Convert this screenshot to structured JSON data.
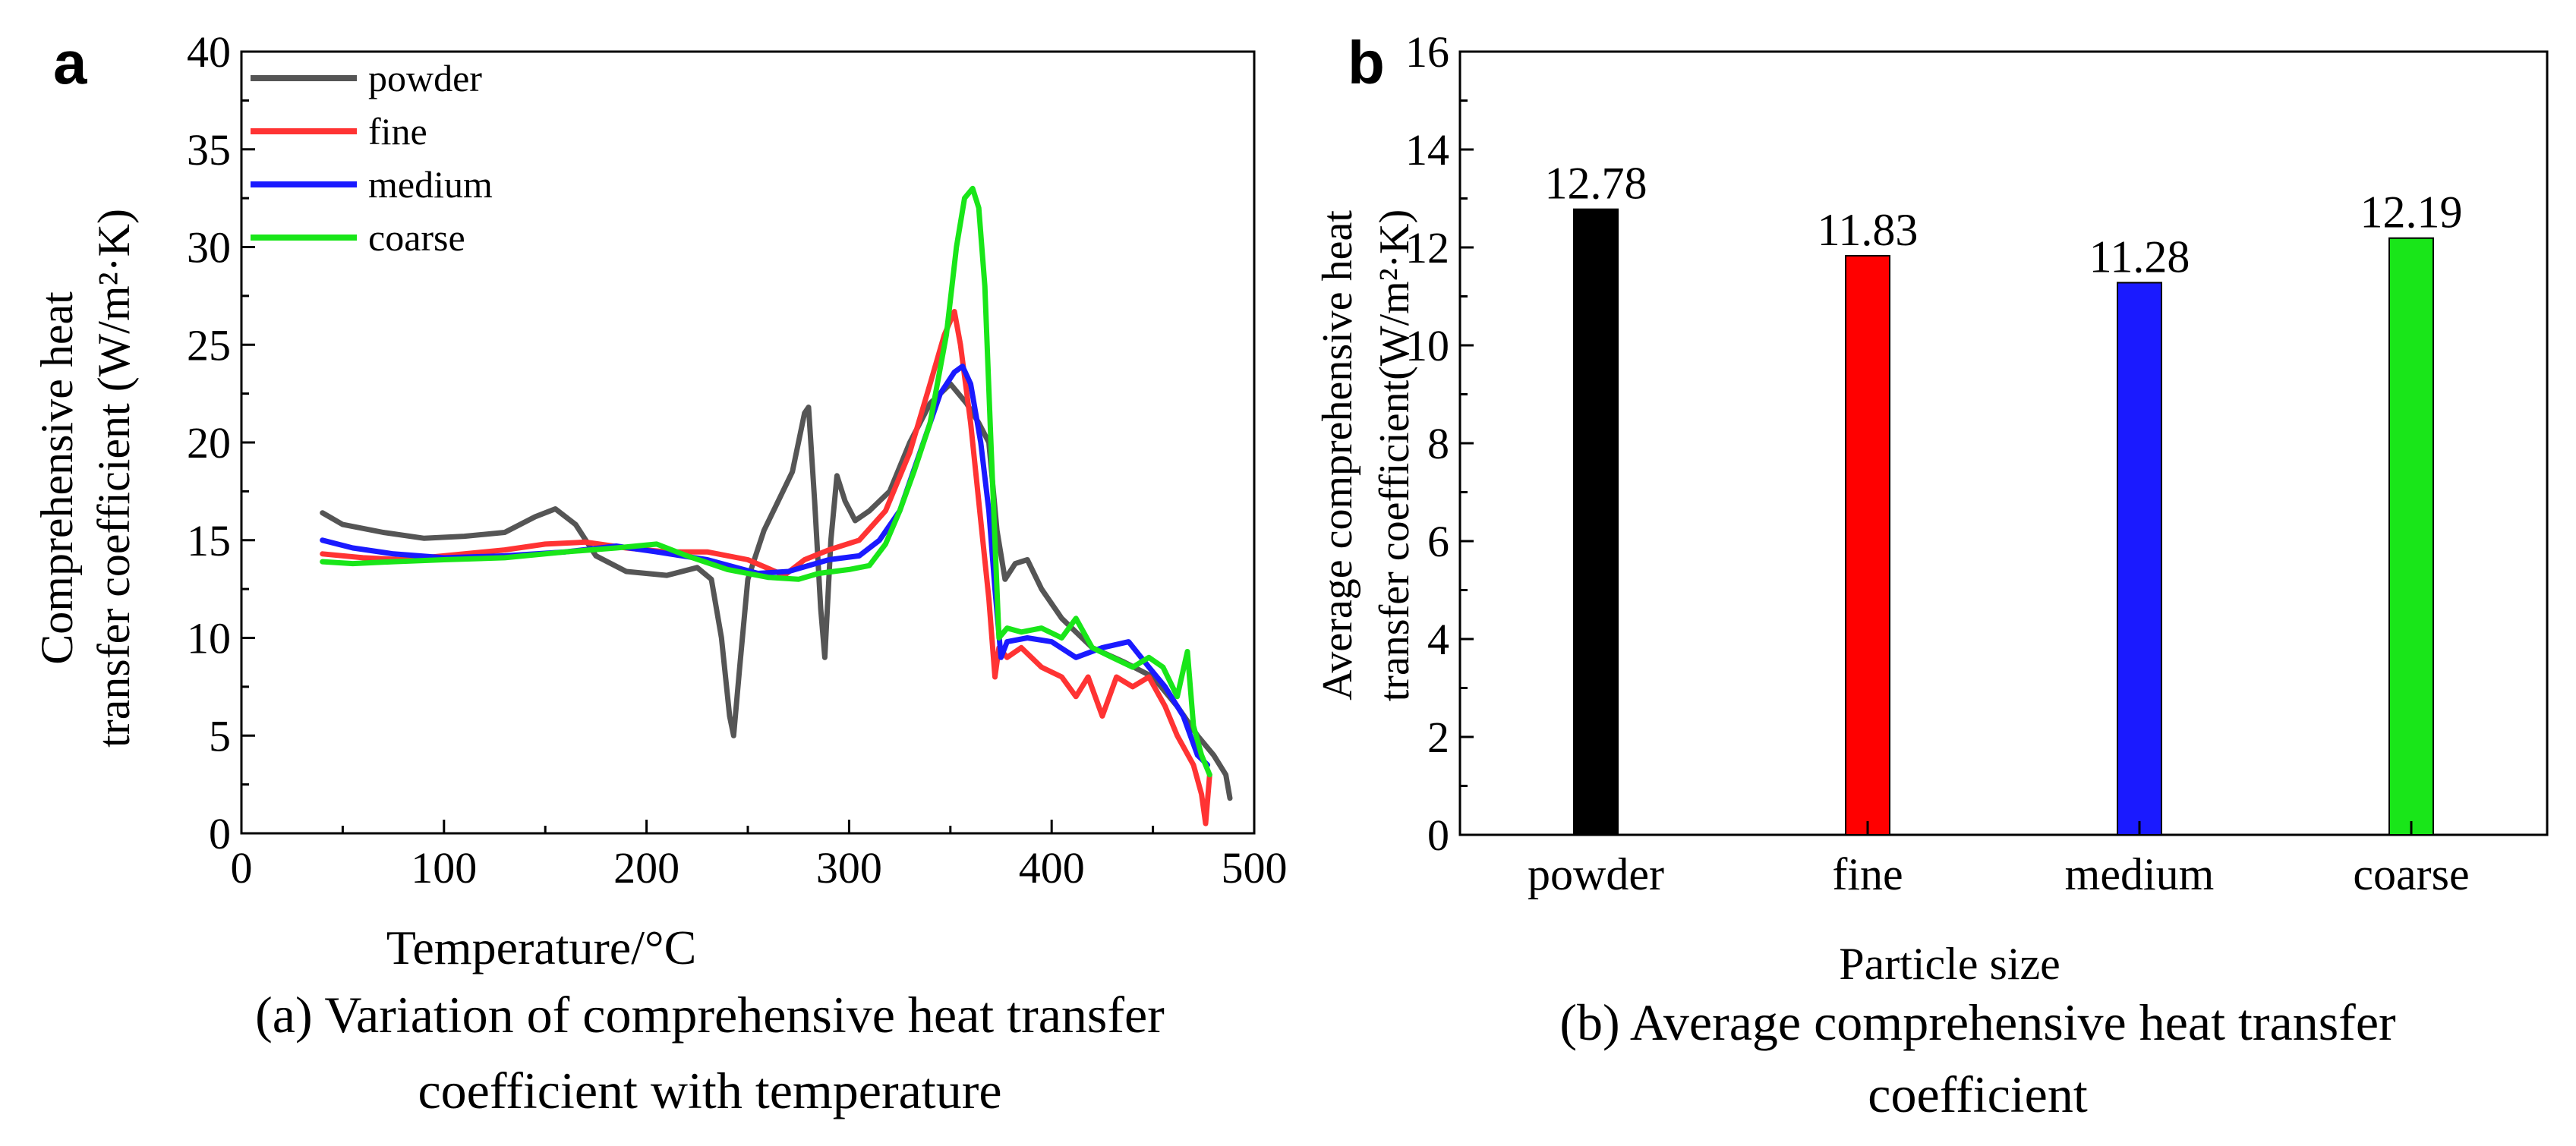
{
  "panels": {
    "a": {
      "label": "a",
      "caption_line1": "(a) Variation of comprehensive heat transfer",
      "caption_line2": "coefficient with temperature"
    },
    "b": {
      "label": "b",
      "caption_line1": "(b) Average comprehensive heat transfer",
      "caption_line2": "coefficient"
    }
  },
  "colors": {
    "powder": "#555555",
    "fine": "#ff3333",
    "medium": "#1a1aff",
    "coarse": "#19e619",
    "black": "#000000"
  },
  "chart_data": [
    {
      "type": "line",
      "xlabel": "Temperature/°C",
      "ylabel_line1": "Comprehensive heat",
      "ylabel_line2": "transfer coefficient (W/m²·K)",
      "xlim": [
        0,
        500
      ],
      "ylim": [
        0,
        40
      ],
      "xticks": [
        "0",
        "100",
        "200",
        "300",
        "400",
        "500"
      ],
      "yticks": [
        "0",
        "5",
        "10",
        "15",
        "20",
        "25",
        "30",
        "35",
        "40"
      ],
      "legend_position": "top-left",
      "series": [
        {
          "name": "powder",
          "color": "#555555",
          "points": [
            [
              40,
              16.4
            ],
            [
              50,
              15.8
            ],
            [
              70,
              15.4
            ],
            [
              90,
              15.1
            ],
            [
              110,
              15.2
            ],
            [
              130,
              15.4
            ],
            [
              145,
              16.2
            ],
            [
              155,
              16.6
            ],
            [
              165,
              15.8
            ],
            [
              175,
              14.2
            ],
            [
              190,
              13.4
            ],
            [
              210,
              13.2
            ],
            [
              225,
              13.6
            ],
            [
              232,
              13.0
            ],
            [
              237,
              10.0
            ],
            [
              241,
              6.0
            ],
            [
              243,
              5.0
            ],
            [
              246,
              8.5
            ],
            [
              250,
              13.0
            ],
            [
              258,
              15.5
            ],
            [
              265,
              17.0
            ],
            [
              272,
              18.5
            ],
            [
              278,
              21.5
            ],
            [
              280,
              21.8
            ],
            [
              283,
              17.0
            ],
            [
              286,
              11.5
            ],
            [
              288,
              9.0
            ],
            [
              291,
              15.0
            ],
            [
              294,
              18.3
            ],
            [
              298,
              17.0
            ],
            [
              303,
              16.0
            ],
            [
              310,
              16.5
            ],
            [
              320,
              17.5
            ],
            [
              330,
              20.0
            ],
            [
              340,
              22.0
            ],
            [
              350,
              23.0
            ],
            [
              358,
              22.0
            ],
            [
              364,
              21.0
            ],
            [
              369,
              20.0
            ],
            [
              373,
              15.5
            ],
            [
              377,
              13.0
            ],
            [
              382,
              13.8
            ],
            [
              388,
              14.0
            ],
            [
              395,
              12.5
            ],
            [
              405,
              11.0
            ],
            [
              420,
              9.5
            ],
            [
              435,
              8.8
            ],
            [
              450,
              8.0
            ],
            [
              462,
              6.5
            ],
            [
              472,
              5.0
            ],
            [
              480,
              4.0
            ],
            [
              486,
              3.0
            ],
            [
              488,
              1.8
            ]
          ]
        },
        {
          "name": "fine",
          "color": "#ff3333",
          "points": [
            [
              40,
              14.3
            ],
            [
              60,
              14.1
            ],
            [
              80,
              14.0
            ],
            [
              100,
              14.2
            ],
            [
              130,
              14.5
            ],
            [
              150,
              14.8
            ],
            [
              170,
              14.9
            ],
            [
              190,
              14.6
            ],
            [
              210,
              14.4
            ],
            [
              230,
              14.4
            ],
            [
              250,
              14.0
            ],
            [
              268,
              13.2
            ],
            [
              278,
              14.0
            ],
            [
              290,
              14.5
            ],
            [
              305,
              15.0
            ],
            [
              318,
              16.5
            ],
            [
              330,
              19.5
            ],
            [
              340,
              23.0
            ],
            [
              347,
              25.5
            ],
            [
              352,
              26.7
            ],
            [
              355,
              25.0
            ],
            [
              360,
              21.0
            ],
            [
              365,
              16.0
            ],
            [
              369,
              12.0
            ],
            [
              372,
              8.0
            ],
            [
              374,
              9.5
            ],
            [
              378,
              9.0
            ],
            [
              385,
              9.5
            ],
            [
              395,
              8.5
            ],
            [
              405,
              8.0
            ],
            [
              412,
              7.0
            ],
            [
              418,
              8.0
            ],
            [
              425,
              6.0
            ],
            [
              432,
              8.0
            ],
            [
              440,
              7.5
            ],
            [
              448,
              8.0
            ],
            [
              456,
              6.5
            ],
            [
              462,
              5.0
            ],
            [
              470,
              3.5
            ],
            [
              474,
              2.0
            ],
            [
              476,
              0.5
            ],
            [
              478,
              3.0
            ]
          ]
        },
        {
          "name": "medium",
          "color": "#1a1aff",
          "points": [
            [
              40,
              15.0
            ],
            [
              55,
              14.6
            ],
            [
              75,
              14.3
            ],
            [
              100,
              14.1
            ],
            [
              130,
              14.2
            ],
            [
              160,
              14.4
            ],
            [
              185,
              14.7
            ],
            [
              205,
              14.4
            ],
            [
              230,
              14.0
            ],
            [
              255,
              13.3
            ],
            [
              270,
              13.4
            ],
            [
              290,
              14.0
            ],
            [
              305,
              14.2
            ],
            [
              315,
              15.0
            ],
            [
              325,
              16.5
            ],
            [
              335,
              19.5
            ],
            [
              345,
              22.5
            ],
            [
              352,
              23.6
            ],
            [
              356,
              23.9
            ],
            [
              360,
              23.0
            ],
            [
              365,
              20.0
            ],
            [
              369,
              16.5
            ],
            [
              372,
              12.5
            ],
            [
              375,
              9.0
            ],
            [
              378,
              9.8
            ],
            [
              388,
              10.0
            ],
            [
              400,
              9.8
            ],
            [
              412,
              9.0
            ],
            [
              425,
              9.5
            ],
            [
              438,
              9.8
            ],
            [
              448,
              8.5
            ],
            [
              456,
              7.5
            ],
            [
              465,
              6.0
            ],
            [
              472,
              4.0
            ],
            [
              477,
              3.5
            ]
          ]
        },
        {
          "name": "coarse",
          "color": "#19e619",
          "points": [
            [
              40,
              13.9
            ],
            [
              55,
              13.8
            ],
            [
              75,
              13.9
            ],
            [
              100,
              14.0
            ],
            [
              130,
              14.1
            ],
            [
              160,
              14.4
            ],
            [
              185,
              14.6
            ],
            [
              205,
              14.8
            ],
            [
              220,
              14.2
            ],
            [
              240,
              13.5
            ],
            [
              260,
              13.1
            ],
            [
              275,
              13.0
            ],
            [
              285,
              13.3
            ],
            [
              300,
              13.5
            ],
            [
              310,
              13.7
            ],
            [
              318,
              14.8
            ],
            [
              325,
              16.5
            ],
            [
              332,
              18.5
            ],
            [
              340,
              21.0
            ],
            [
              348,
              25.5
            ],
            [
              353,
              30.0
            ],
            [
              357,
              32.5
            ],
            [
              361,
              33.0
            ],
            [
              364,
              32.0
            ],
            [
              367,
              28.0
            ],
            [
              370,
              20.0
            ],
            [
              372,
              15.0
            ],
            [
              374,
              10.0
            ],
            [
              378,
              10.5
            ],
            [
              385,
              10.3
            ],
            [
              395,
              10.5
            ],
            [
              405,
              10.0
            ],
            [
              412,
              11.0
            ],
            [
              420,
              9.5
            ],
            [
              430,
              9.0
            ],
            [
              440,
              8.5
            ],
            [
              448,
              9.0
            ],
            [
              455,
              8.5
            ],
            [
              462,
              7.0
            ],
            [
              467,
              9.3
            ],
            [
              470,
              5.5
            ],
            [
              474,
              4.0
            ],
            [
              478,
              3.0
            ]
          ]
        }
      ]
    },
    {
      "type": "bar",
      "xlabel": "Particle size",
      "ylabel_line1": "Average comprehensive heat",
      "ylabel_line2": "transfer coefficient(W/m²·K)",
      "ylim": [
        0,
        16
      ],
      "yticks": [
        "0",
        "2",
        "4",
        "6",
        "8",
        "10",
        "12",
        "14",
        "16"
      ],
      "categories": [
        "powder",
        "fine",
        "medium",
        "coarse"
      ],
      "values": [
        12.78,
        11.83,
        11.28,
        12.19
      ],
      "value_labels": [
        "12.78",
        "11.83",
        "11.28",
        "12.19"
      ],
      "bar_colors": [
        "#000000",
        "#ff0000",
        "#1a1aff",
        "#19e619"
      ]
    }
  ]
}
